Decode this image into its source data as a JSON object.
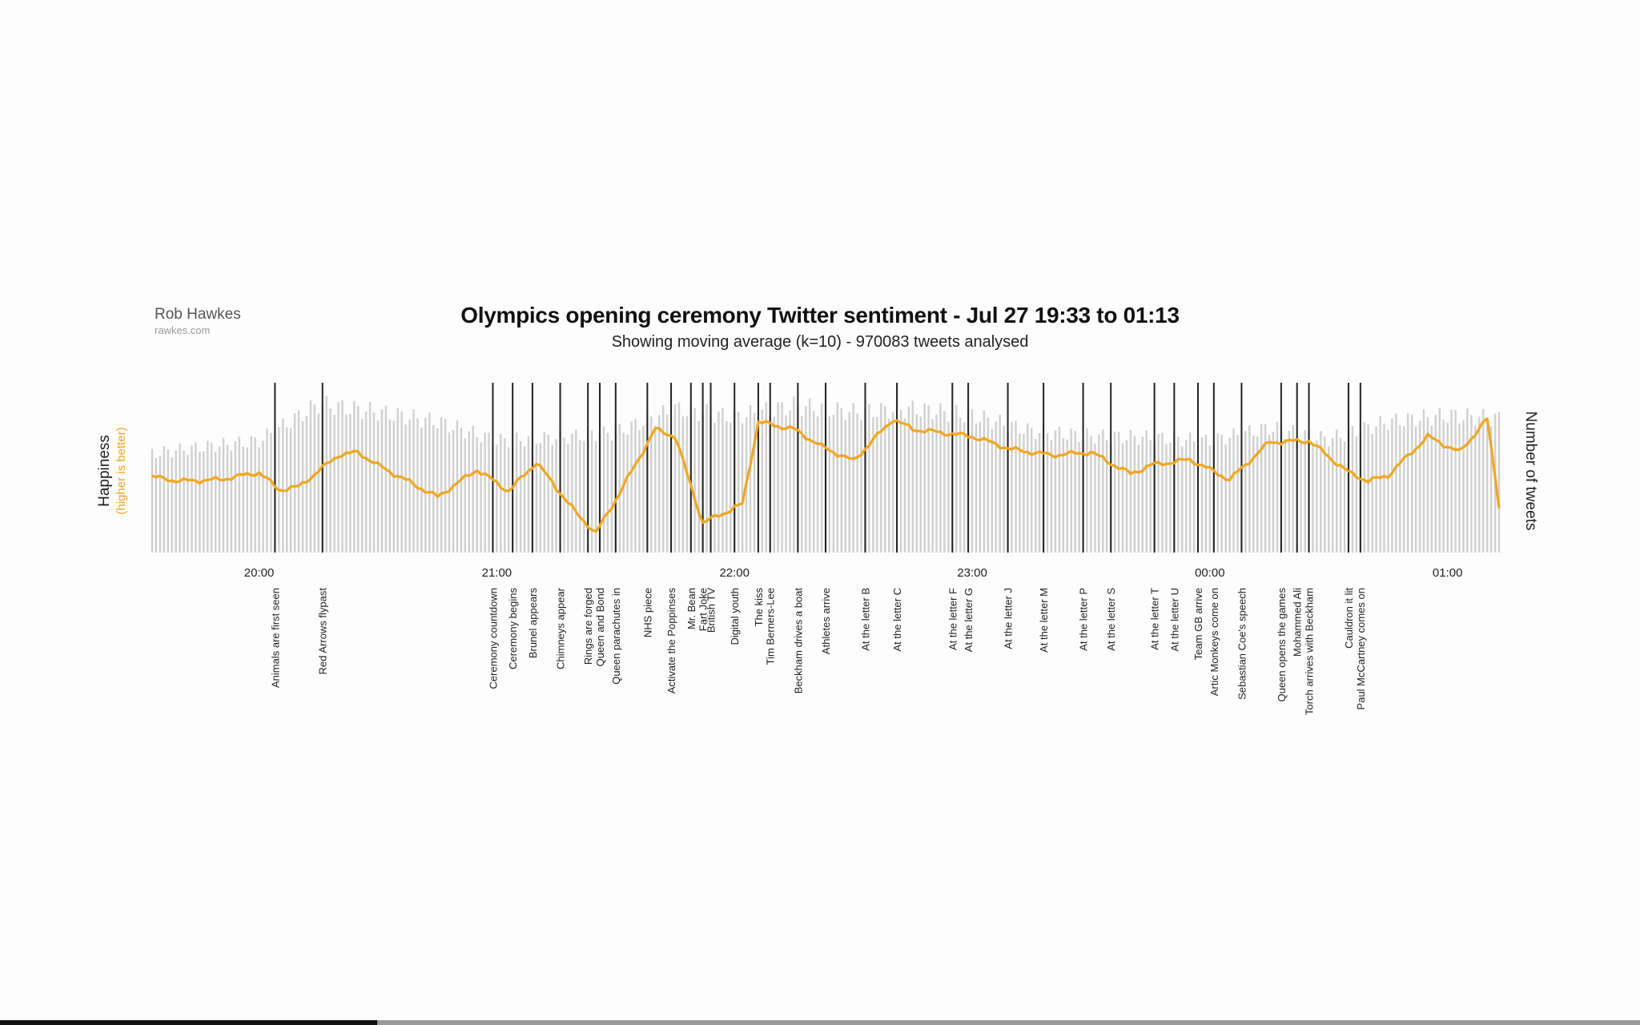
{
  "author": {
    "name": "Rob Hawkes",
    "site": "rawkes.com"
  },
  "progress": {
    "fraction": 0.23
  },
  "chart_data": {
    "type": "line",
    "title": "Olympics opening ceremony Twitter sentiment - Jul 27 19:33 to 01:13",
    "subtitle": "Showing moving average (k=10) - 970083 tweets analysed",
    "ylabel_left": "Happiness",
    "ylabel_left_note": "(higher is better)",
    "ylabel_right": "Number of tweets",
    "x_range": [
      "19:33",
      "01:13"
    ],
    "x_ticks": [
      "20:00",
      "21:00",
      "22:00",
      "23:00",
      "00:00",
      "01:00"
    ],
    "colors": {
      "happiness": "#f4a61b",
      "tweets": "#d0d0d0",
      "events": "#222222"
    },
    "happiness_series": {
      "name": "Happiness",
      "x": [
        "19:33",
        "19:40",
        "19:50",
        "20:00",
        "20:05",
        "20:10",
        "20:20",
        "20:25",
        "20:30",
        "20:45",
        "20:55",
        "21:03",
        "21:10",
        "21:20",
        "21:25",
        "21:30",
        "21:40",
        "21:45",
        "21:52",
        "22:02",
        "22:06",
        "22:15",
        "22:22",
        "22:30",
        "22:40",
        "22:45",
        "23:00",
        "23:10",
        "23:20",
        "23:30",
        "23:40",
        "23:45",
        "23:55",
        "24:05",
        "24:15",
        "24:25",
        "24:35",
        "24:40",
        "24:45",
        "24:55",
        "25:03",
        "25:10",
        "25:13"
      ],
      "values": [
        0.47,
        0.44,
        0.45,
        0.5,
        0.38,
        0.4,
        0.62,
        0.64,
        0.55,
        0.33,
        0.52,
        0.37,
        0.57,
        0.22,
        0.08,
        0.31,
        0.8,
        0.75,
        0.15,
        0.28,
        0.85,
        0.8,
        0.68,
        0.58,
        0.87,
        0.8,
        0.75,
        0.66,
        0.62,
        0.64,
        0.49,
        0.55,
        0.59,
        0.45,
        0.71,
        0.72,
        0.5,
        0.44,
        0.48,
        0.75,
        0.64,
        0.87,
        0.27
      ]
    },
    "tweet_counts": {
      "name": "Number of tweets",
      "x": [
        "19:33",
        "19:45",
        "20:00",
        "20:15",
        "20:30",
        "20:45",
        "21:00",
        "21:15",
        "21:30",
        "21:45",
        "22:00",
        "22:15",
        "22:30",
        "22:45",
        "23:00",
        "23:15",
        "23:30",
        "23:45",
        "00:00",
        "00:15",
        "00:30",
        "00:45",
        "01:00",
        "01:13"
      ],
      "values": [
        0.62,
        0.66,
        0.7,
        0.93,
        0.88,
        0.82,
        0.7,
        0.72,
        0.75,
        0.9,
        0.85,
        0.92,
        0.88,
        0.9,
        0.86,
        0.76,
        0.73,
        0.72,
        0.7,
        0.78,
        0.71,
        0.82,
        0.86,
        0.84
      ]
    },
    "events": [
      {
        "time": "20:04",
        "label": "Animals are first seen"
      },
      {
        "time": "20:16",
        "label": "Red Arrows flypast"
      },
      {
        "time": "20:59",
        "label": "Ceremony countdown"
      },
      {
        "time": "21:04",
        "label": "Ceremony begins"
      },
      {
        "time": "21:09",
        "label": "Brunel appears"
      },
      {
        "time": "21:16",
        "label": "Chimneys appear"
      },
      {
        "time": "21:23",
        "label": "Rings are forged"
      },
      {
        "time": "21:26",
        "label": "Queen and Bond"
      },
      {
        "time": "21:30",
        "label": "Queen parachutes in"
      },
      {
        "time": "21:38",
        "label": "NHS piece"
      },
      {
        "time": "21:44",
        "label": "Activate the Poppinses"
      },
      {
        "time": "21:49",
        "label": "Mr. Bean"
      },
      {
        "time": "21:52",
        "label": "Fart Joke"
      },
      {
        "time": "21:54",
        "label": "British TV"
      },
      {
        "time": "22:00",
        "label": "Digital youth"
      },
      {
        "time": "22:06",
        "label": "The kiss"
      },
      {
        "time": "22:09",
        "label": "Tim Berners-Lee"
      },
      {
        "time": "22:16",
        "label": "Beckham drives a boat"
      },
      {
        "time": "22:23",
        "label": "Athletes arrive"
      },
      {
        "time": "22:33",
        "label": "At the letter B"
      },
      {
        "time": "22:41",
        "label": "At the letter C"
      },
      {
        "time": "22:55",
        "label": "At the letter F"
      },
      {
        "time": "22:59",
        "label": "At the letter G"
      },
      {
        "time": "23:09",
        "label": "At the letter J"
      },
      {
        "time": "23:18",
        "label": "At the letter M"
      },
      {
        "time": "23:28",
        "label": "At the letter P"
      },
      {
        "time": "23:35",
        "label": "At the letter S"
      },
      {
        "time": "23:46",
        "label": "At the letter T"
      },
      {
        "time": "23:51",
        "label": "At the letter U"
      },
      {
        "time": "23:57",
        "label": "Team GB arrive"
      },
      {
        "time": "00:01",
        "label": "Artic Monkeys come on"
      },
      {
        "time": "00:08",
        "label": "Sebastian Coe's speech"
      },
      {
        "time": "00:18",
        "label": "Queen opens the games"
      },
      {
        "time": "00:22",
        "label": "Mohammed Ali"
      },
      {
        "time": "00:25",
        "label": "Torch arrives with Beckham"
      },
      {
        "time": "00:35",
        "label": "Cauldron it lit"
      },
      {
        "time": "00:38",
        "label": "Paul McCartney comes on"
      }
    ]
  }
}
